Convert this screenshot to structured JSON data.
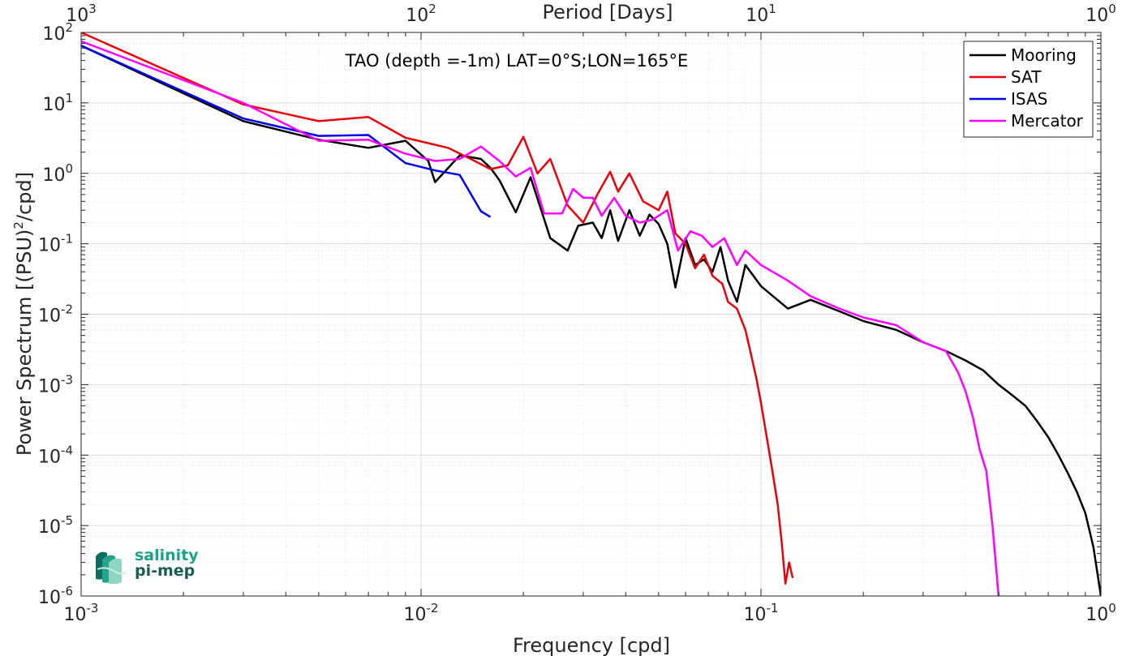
{
  "chart_data": {
    "type": "line",
    "title": "TAO (depth =-1m) LAT=0°S;LON=165°E",
    "xlabel": "Frequency [cpd]",
    "ylabel": "Power Spectrum [(PSU)²/cpd]",
    "top_xlabel": "Period [Days]",
    "xscale": "log",
    "yscale": "log",
    "xlim": [
      0.001,
      1
    ],
    "ylim": [
      1e-06,
      100
    ],
    "grid": true,
    "legend": "top-right",
    "x_ticks": [
      {
        "base": "10",
        "exp": "-3",
        "value": 0.001
      },
      {
        "base": "10",
        "exp": "-2",
        "value": 0.01
      },
      {
        "base": "10",
        "exp": "-1",
        "value": 0.1
      },
      {
        "base": "10",
        "exp": "0",
        "value": 1
      }
    ],
    "top_ticks": [
      {
        "base": "10",
        "exp": "3",
        "value": 0.001
      },
      {
        "base": "10",
        "exp": "2",
        "value": 0.01
      },
      {
        "base": "10",
        "exp": "1",
        "value": 0.1
      },
      {
        "base": "10",
        "exp": "0",
        "value": 1
      }
    ],
    "y_ticks": [
      {
        "base": "10",
        "exp": "2",
        "value": 100
      },
      {
        "base": "10",
        "exp": "1",
        "value": 10
      },
      {
        "base": "10",
        "exp": "0",
        "value": 1
      },
      {
        "base": "10",
        "exp": "-1",
        "value": 0.1
      },
      {
        "base": "10",
        "exp": "-2",
        "value": 0.01
      },
      {
        "base": "10",
        "exp": "-3",
        "value": 0.001
      },
      {
        "base": "10",
        "exp": "-4",
        "value": 0.0001
      },
      {
        "base": "10",
        "exp": "-5",
        "value": 1e-05
      },
      {
        "base": "10",
        "exp": "-6",
        "value": 1e-06
      }
    ],
    "series": [
      {
        "name": "Mooring",
        "color": "#000000",
        "points": [
          [
            0.001,
            65
          ],
          [
            0.003,
            5.5
          ],
          [
            0.005,
            3.0
          ],
          [
            0.007,
            2.3
          ],
          [
            0.009,
            2.9
          ],
          [
            0.0105,
            1.5
          ],
          [
            0.011,
            0.75
          ],
          [
            0.013,
            1.8
          ],
          [
            0.015,
            1.6
          ],
          [
            0.016,
            1.2
          ],
          [
            0.017,
            0.8
          ],
          [
            0.019,
            0.28
          ],
          [
            0.021,
            0.88
          ],
          [
            0.024,
            0.12
          ],
          [
            0.027,
            0.08
          ],
          [
            0.029,
            0.18
          ],
          [
            0.032,
            0.2
          ],
          [
            0.034,
            0.12
          ],
          [
            0.036,
            0.3
          ],
          [
            0.038,
            0.11
          ],
          [
            0.041,
            0.3
          ],
          [
            0.044,
            0.13
          ],
          [
            0.047,
            0.26
          ],
          [
            0.05,
            0.19
          ],
          [
            0.053,
            0.1
          ],
          [
            0.056,
            0.024
          ],
          [
            0.06,
            0.12
          ],
          [
            0.064,
            0.05
          ],
          [
            0.068,
            0.06
          ],
          [
            0.072,
            0.04
          ],
          [
            0.076,
            0.09
          ],
          [
            0.08,
            0.03
          ],
          [
            0.085,
            0.015
          ],
          [
            0.09,
            0.05
          ],
          [
            0.1,
            0.025
          ],
          [
            0.12,
            0.012
          ],
          [
            0.14,
            0.016
          ],
          [
            0.17,
            0.011
          ],
          [
            0.2,
            0.008
          ],
          [
            0.25,
            0.006
          ],
          [
            0.3,
            0.004
          ],
          [
            0.35,
            0.003
          ],
          [
            0.4,
            0.0022
          ],
          [
            0.45,
            0.0016
          ],
          [
            0.5,
            0.001
          ],
          [
            0.55,
            0.0007
          ],
          [
            0.6,
            0.0005
          ],
          [
            0.65,
            0.0003
          ],
          [
            0.7,
            0.00018
          ],
          [
            0.75,
            0.0001
          ],
          [
            0.8,
            5.5e-05
          ],
          [
            0.85,
            3e-05
          ],
          [
            0.9,
            1.5e-05
          ],
          [
            0.95,
            5e-06
          ],
          [
            1.0,
            1e-06
          ]
        ]
      },
      {
        "name": "SAT",
        "color": "#e8000b",
        "points": [
          [
            0.001,
            100
          ],
          [
            0.003,
            9.5
          ],
          [
            0.005,
            5.5
          ],
          [
            0.007,
            6.3
          ],
          [
            0.009,
            3.2
          ],
          [
            0.012,
            2.3
          ],
          [
            0.014,
            1.6
          ],
          [
            0.016,
            1.15
          ],
          [
            0.018,
            1.3
          ],
          [
            0.02,
            3.3
          ],
          [
            0.022,
            1.0
          ],
          [
            0.024,
            1.6
          ],
          [
            0.027,
            0.35
          ],
          [
            0.03,
            0.2
          ],
          [
            0.033,
            0.5
          ],
          [
            0.036,
            1.05
          ],
          [
            0.038,
            0.55
          ],
          [
            0.041,
            1.0
          ],
          [
            0.045,
            0.4
          ],
          [
            0.05,
            0.3
          ],
          [
            0.053,
            0.55
          ],
          [
            0.056,
            0.14
          ],
          [
            0.06,
            0.1
          ],
          [
            0.064,
            0.045
          ],
          [
            0.068,
            0.07
          ],
          [
            0.072,
            0.035
          ],
          [
            0.077,
            0.027
          ],
          [
            0.08,
            0.015
          ],
          [
            0.085,
            0.012
          ],
          [
            0.09,
            0.006
          ],
          [
            0.093,
            0.003
          ],
          [
            0.097,
            0.0012
          ],
          [
            0.1,
            0.00055
          ],
          [
            0.104,
            0.00018
          ],
          [
            0.108,
            6e-05
          ],
          [
            0.112,
            2e-05
          ],
          [
            0.115,
            6e-06
          ],
          [
            0.118,
            1.5e-06
          ],
          [
            0.121,
            3e-06
          ],
          [
            0.124,
            1.8e-06
          ]
        ]
      },
      {
        "name": "ISAS",
        "color": "#0000ee",
        "points": [
          [
            0.001,
            65
          ],
          [
            0.003,
            6.0
          ],
          [
            0.005,
            3.4
          ],
          [
            0.007,
            3.5
          ],
          [
            0.009,
            1.4
          ],
          [
            0.011,
            1.1
          ],
          [
            0.013,
            0.95
          ],
          [
            0.015,
            0.29
          ],
          [
            0.016,
            0.24
          ]
        ]
      },
      {
        "name": "Mercator",
        "color": "#ff00ff",
        "points": [
          [
            0.001,
            75
          ],
          [
            0.003,
            10
          ],
          [
            0.005,
            2.9
          ],
          [
            0.007,
            3.0
          ],
          [
            0.009,
            1.9
          ],
          [
            0.011,
            1.5
          ],
          [
            0.013,
            1.6
          ],
          [
            0.015,
            2.4
          ],
          [
            0.017,
            1.5
          ],
          [
            0.019,
            0.9
          ],
          [
            0.021,
            1.2
          ],
          [
            0.023,
            0.27
          ],
          [
            0.026,
            0.27
          ],
          [
            0.028,
            0.6
          ],
          [
            0.03,
            0.45
          ],
          [
            0.032,
            0.45
          ],
          [
            0.034,
            0.25
          ],
          [
            0.037,
            0.45
          ],
          [
            0.04,
            0.25
          ],
          [
            0.044,
            0.2
          ],
          [
            0.048,
            0.22
          ],
          [
            0.053,
            0.3
          ],
          [
            0.057,
            0.08
          ],
          [
            0.062,
            0.15
          ],
          [
            0.067,
            0.13
          ],
          [
            0.072,
            0.09
          ],
          [
            0.078,
            0.12
          ],
          [
            0.085,
            0.05
          ],
          [
            0.09,
            0.08
          ],
          [
            0.1,
            0.05
          ],
          [
            0.12,
            0.03
          ],
          [
            0.14,
            0.018
          ],
          [
            0.17,
            0.012
          ],
          [
            0.2,
            0.009
          ],
          [
            0.25,
            0.007
          ],
          [
            0.3,
            0.004
          ],
          [
            0.35,
            0.003
          ],
          [
            0.38,
            0.0015
          ],
          [
            0.4,
            0.0008
          ],
          [
            0.42,
            0.00035
          ],
          [
            0.44,
            0.00012
          ],
          [
            0.46,
            6e-05
          ],
          [
            0.48,
            1e-05
          ],
          [
            0.5,
            1e-06
          ]
        ]
      }
    ]
  },
  "logo": {
    "line1": "salinity",
    "line2": "pi-mep",
    "color1": "#1aa389",
    "color2": "#1d5c52"
  }
}
